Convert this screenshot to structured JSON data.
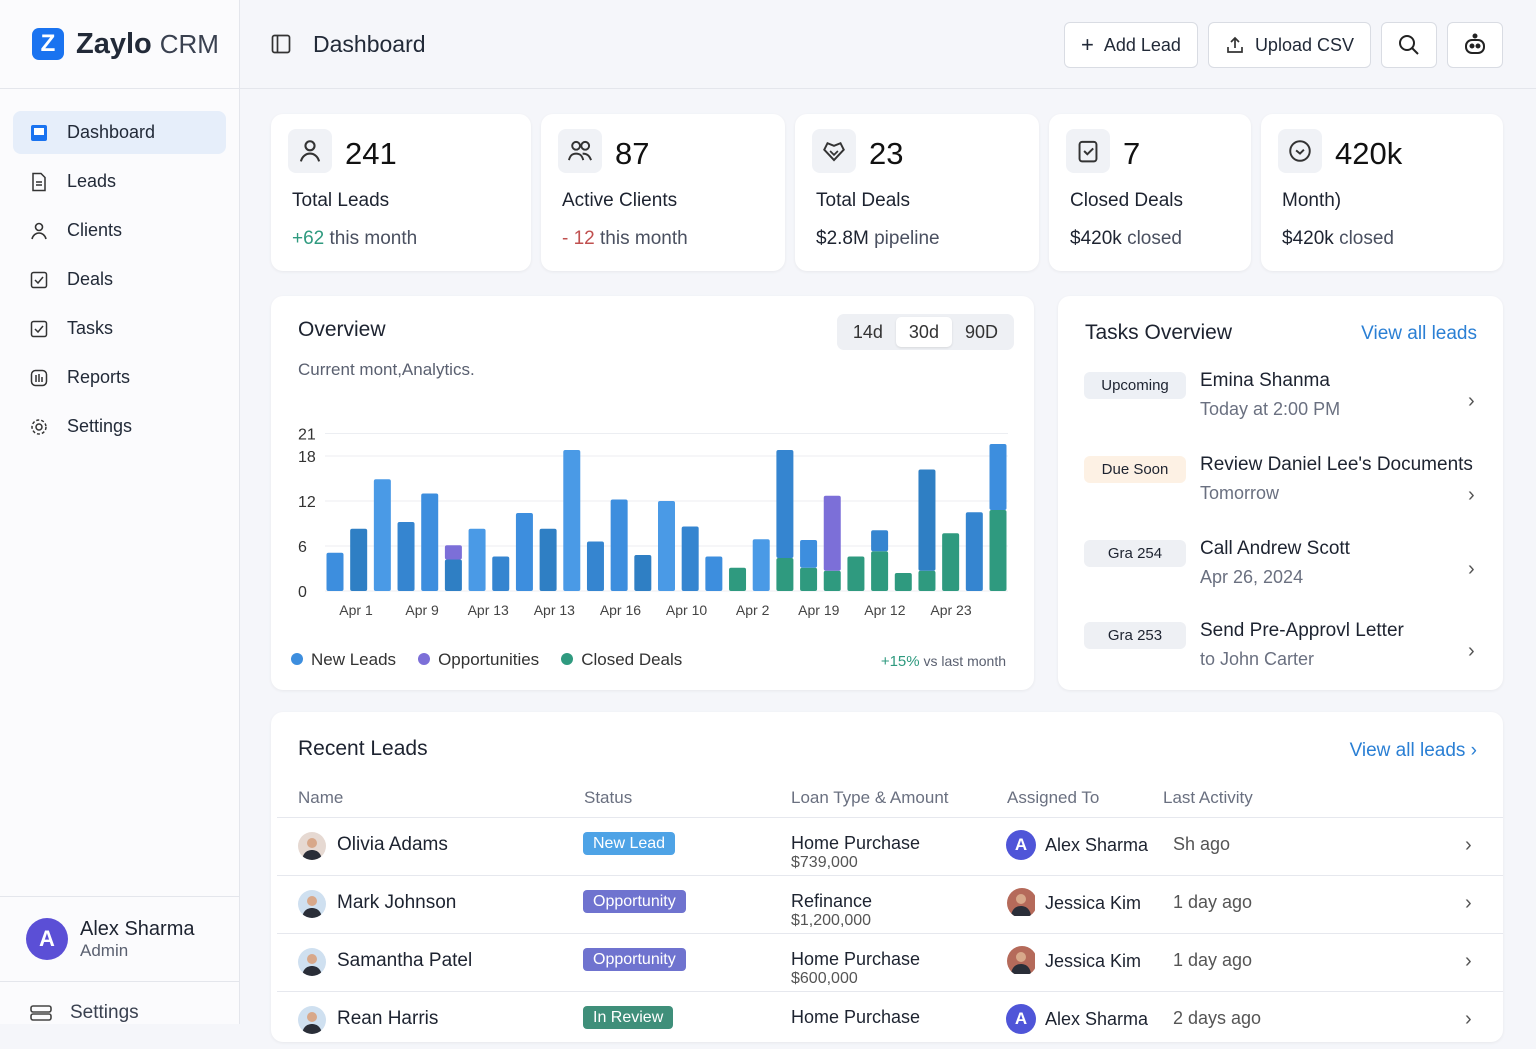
{
  "app": {
    "logo_letter": "Z",
    "name": "Zaylo",
    "suffix": "CRM"
  },
  "sidebar": {
    "items": [
      {
        "label": "Dashboard",
        "icon": "dashboard-icon"
      },
      {
        "label": "Leads",
        "icon": "document-icon"
      },
      {
        "label": "Clients",
        "icon": "user-icon"
      },
      {
        "label": "Deals",
        "icon": "checkbox-icon"
      },
      {
        "label": "Tasks",
        "icon": "checkbox-icon"
      },
      {
        "label": "Reports",
        "icon": "reports-icon"
      },
      {
        "label": "Settings",
        "icon": "gear-icon"
      }
    ],
    "user": {
      "initial": "A",
      "name": "Alex Sharma",
      "role": "Admin"
    },
    "bottom_settings": "Settings"
  },
  "header": {
    "title": "Dashboard",
    "add_lead": "Add Lead",
    "upload_csv": "Upload CSV"
  },
  "stats": [
    {
      "value": "241",
      "label": "Total Leads",
      "delta": "+62",
      "sub": "this month",
      "tone": "up",
      "icon": "user-icon"
    },
    {
      "value": "87",
      "label": "Active Clients",
      "delta": "- 12",
      "sub": "this month",
      "tone": "down",
      "icon": "users-icon"
    },
    {
      "value": "23",
      "label": "Total Deals",
      "delta": "$2.8M",
      "sub": "pipeline",
      "icon": "handshake-icon"
    },
    {
      "value": "7",
      "label": "Closed Deals",
      "delta": "$420k",
      "sub": "closed",
      "icon": "clipboard-check-icon"
    },
    {
      "value": "420k",
      "label": "Month)",
      "delta": "$420k",
      "sub": "closed",
      "icon": "check-circle-icon"
    }
  ],
  "overview": {
    "title": "Overview",
    "subtitle": "Current mont,Analytics.",
    "ranges": [
      "14d",
      "30d",
      "90D"
    ],
    "selected_range": "30d",
    "change": "+15%",
    "change_sub": "vs last month"
  },
  "chart_data": {
    "type": "bar",
    "stacked": true,
    "yticks": [
      0,
      6,
      12,
      18,
      21
    ],
    "ylim": [
      0,
      24
    ],
    "grid": true,
    "legend": "bottom-left",
    "xtick_labels": [
      {
        "bar": 0,
        "label": "Apr 1"
      },
      {
        "bar": 3,
        "label": "Apr 9"
      },
      {
        "bar": 6,
        "label": "Apr 13"
      },
      {
        "bar": 9,
        "label": "Apr 13"
      },
      {
        "bar": 11,
        "label": "Apr 16"
      },
      {
        "bar": 14,
        "label": "Apr 10"
      },
      {
        "bar": 17,
        "label": "Apr 2"
      },
      {
        "bar": 20,
        "label": "Apr 19"
      },
      {
        "bar": 23,
        "label": "Apr 12"
      },
      {
        "bar": 26,
        "label": "Apr 23"
      }
    ],
    "series": [
      {
        "name": "Closed Deals",
        "color": "#2f9a7f",
        "values": [
          0,
          0,
          0,
          0,
          0,
          0,
          0,
          0,
          0,
          0,
          0,
          0,
          0,
          0,
          0,
          0,
          0,
          3.1,
          0,
          4.4,
          3.1,
          2.7,
          4.6,
          5.3,
          2.4,
          2.7,
          7.7,
          0,
          10.8
        ]
      },
      {
        "name": "New Leads",
        "color": "#3d8ede",
        "values": [
          5.1,
          8.3,
          14.9,
          9.2,
          13,
          4.2,
          8.3,
          4.6,
          10.4,
          8.3,
          18.8,
          6.6,
          12.2,
          4.8,
          12,
          8.6,
          4.6,
          0,
          6.9,
          14.4,
          3.7,
          0,
          0,
          2.8,
          0,
          13.5,
          0,
          10.5,
          8.8
        ]
      },
      {
        "name": "Opportunities",
        "color": "#7c6fd8",
        "values": [
          0,
          0,
          0,
          0,
          0,
          1.9,
          0,
          0,
          0,
          0,
          0,
          0,
          0,
          0,
          0,
          0,
          0,
          0,
          0,
          0,
          0,
          10,
          0,
          0,
          0,
          0,
          0,
          0,
          0
        ]
      }
    ]
  },
  "tasks": {
    "title": "Tasks Overview",
    "view_all": "View all leads",
    "items": [
      {
        "badge": "Upcoming",
        "badge_bg": "#edf0f5",
        "title": "Emina Shanma",
        "sub": "Today at 2:00 PM"
      },
      {
        "badge": "Due Soon",
        "badge_bg": "#fdf1e4",
        "title": "Review Daniel Lee's Documents",
        "sub": "Tomorrow"
      },
      {
        "badge": "Gra 254",
        "badge_bg": "#eef0f4",
        "title": "Call Andrew Scott",
        "sub": "Apr 26, 2024"
      },
      {
        "badge": "Gra 253",
        "badge_bg": "#eef0f4",
        "title": "Send Pre-Approvl Letter",
        "sub": "to John Carter"
      }
    ]
  },
  "leads": {
    "title": "Recent Leads",
    "view_all": "View all leads",
    "columns": [
      "Name",
      "Status",
      "Loan Type & Amount",
      "Assigned To",
      "Last Activity"
    ],
    "rows": [
      {
        "name": "Olivia Adams",
        "status": "New Lead",
        "status_color": "#4ea3e6",
        "loan": "Home Purchase",
        "amount": "$739,000",
        "assigned": "Alex Sharma",
        "assigned_initial": "A",
        "last": "Sh ago"
      },
      {
        "name": "Mark Johnson",
        "status": "Opportunity",
        "status_color": "#6f73cf",
        "loan": "Refinance",
        "amount": "$1,200,000",
        "assigned": "Jessica Kim",
        "assigned_initial": "",
        "last": "1 day ago"
      },
      {
        "name": "Samantha Patel",
        "status": "Opportunity",
        "status_color": "#6f73cf",
        "loan": "Home Purchase",
        "amount": "$600,000",
        "assigned": "Jessica Kim",
        "assigned_initial": "",
        "last": "1 day ago"
      },
      {
        "name": "Rean Harris",
        "status": "In Review",
        "status_color": "#3f8f7a",
        "loan": "Home Purchase",
        "amount": "",
        "assigned": "Alex Sharma",
        "assigned_initial": "A",
        "last": "2 days ago"
      }
    ]
  }
}
